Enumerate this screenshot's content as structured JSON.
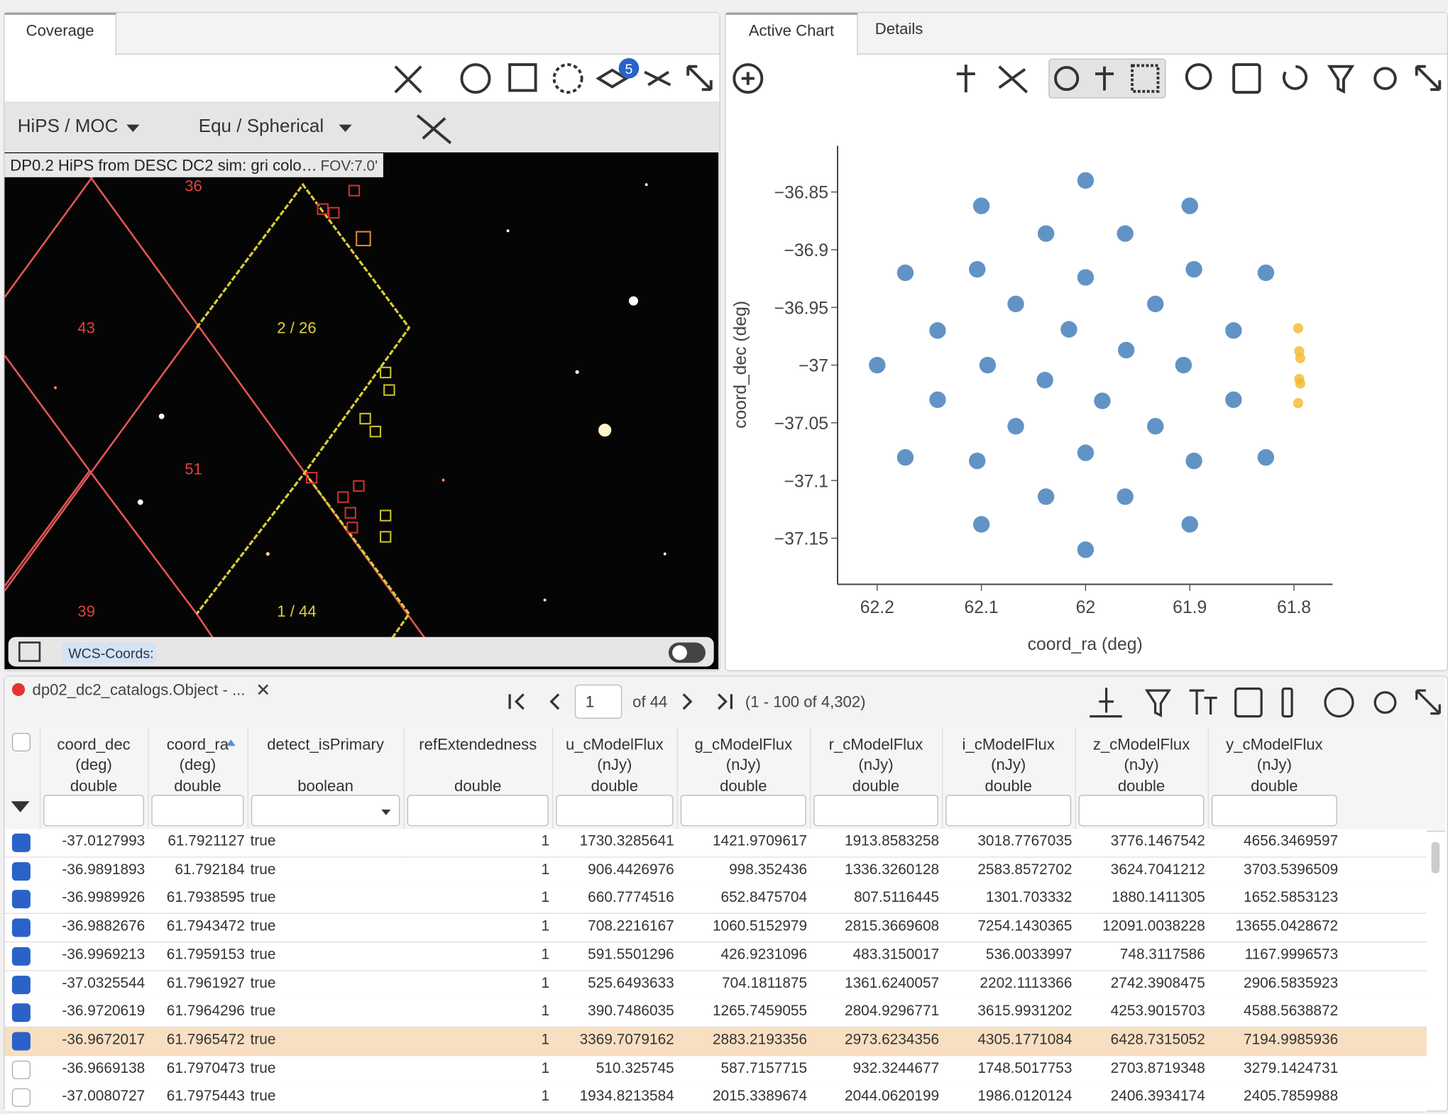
{
  "coverage": {
    "tab": "Coverage",
    "badge": "5",
    "projection": "HiPS / MOC",
    "coords": "Equ / Spherical",
    "image_title": "DP0.2 HiPS from DESC DC2 sim: gri colo…",
    "fov": "FOV:7.0'",
    "tile_labels": [
      "36",
      "43",
      "2 / 26",
      "51",
      "39",
      "1 / 44"
    ],
    "wcs": "WCS-Coords:"
  },
  "chart_panel": {
    "tabs": [
      "Active Chart",
      "Details"
    ]
  },
  "chart_data": {
    "type": "scatter",
    "xlabel": "coord_ra (deg)",
    "ylabel": "coord_dec (deg)",
    "xlim": [
      62.238,
      61.763
    ],
    "ylim": [
      -37.19,
      -36.81
    ],
    "xticks": [
      62.2,
      62.1,
      62,
      61.9,
      61.8
    ],
    "yticks": [
      {
        "value": -36.85,
        "label": "−36.85"
      },
      {
        "value": -36.9,
        "label": "−36.9"
      },
      {
        "value": -36.95,
        "label": "−36.95"
      },
      {
        "value": -37,
        "label": "−37"
      },
      {
        "value": -37.05,
        "label": "−37.05"
      },
      {
        "value": -37.1,
        "label": "−37.1"
      },
      {
        "value": -37.15,
        "label": "−37.15"
      }
    ],
    "series": [
      {
        "color": "#3b78b8",
        "x": [
          61.827,
          61.9,
          62.0,
          62.1,
          62.173,
          62.2,
          62.173,
          62.1,
          62.0,
          61.9,
          61.827,
          61.858,
          61.896,
          61.962,
          62.038,
          62.104,
          62.142,
          62.142,
          62.104,
          62.038,
          61.962,
          61.896,
          61.858,
          61.906,
          61.933,
          62.0,
          62.067,
          62.094,
          62.067,
          62.0,
          61.933,
          61.961,
          62.016,
          62.039,
          61.984
        ],
        "y": [
          -36.92,
          -36.862,
          -36.84,
          -36.862,
          -36.92,
          -37.0,
          -37.08,
          -37.138,
          -37.16,
          -37.138,
          -37.08,
          -36.97,
          -36.917,
          -36.886,
          -36.886,
          -36.917,
          -36.97,
          -37.03,
          -37.083,
          -37.114,
          -37.114,
          -37.083,
          -37.03,
          -37.0,
          -36.947,
          -36.924,
          -36.947,
          -37.0,
          -37.053,
          -37.076,
          -37.053,
          -36.987,
          -36.969,
          -37.013,
          -37.031
        ]
      },
      {
        "color": "#f5b82e",
        "x": [
          61.796,
          61.795,
          61.794,
          61.795,
          61.794,
          61.796
        ],
        "y": [
          -36.968,
          -36.988,
          -36.994,
          -37.012,
          -37.016,
          -37.033
        ]
      }
    ]
  },
  "table": {
    "title": "dp02_dc2_catalogs.Object - ...",
    "page": "1",
    "page_count": "of 44",
    "range": "(1 - 100 of 4,302)",
    "columns": [
      {
        "name": "coord_dec",
        "unit": "(deg)",
        "type": "double"
      },
      {
        "name": "coord_ra",
        "unit": "(deg)",
        "type": "double"
      },
      {
        "name": "detect_isPrimary",
        "type": "boolean"
      },
      {
        "name": "refExtendedness",
        "type": "double"
      },
      {
        "name": "u_cModelFlux",
        "unit": "(nJy)",
        "type": "double"
      },
      {
        "name": "g_cModelFlux",
        "unit": "(nJy)",
        "type": "double"
      },
      {
        "name": "r_cModelFlux",
        "unit": "(nJy)",
        "type": "double"
      },
      {
        "name": "i_cModelFlux",
        "unit": "(nJy)",
        "type": "double"
      },
      {
        "name": "z_cModelFlux",
        "unit": "(nJy)",
        "type": "double"
      },
      {
        "name": "y_cModelFlux",
        "unit": "(nJy)",
        "type": "double"
      }
    ],
    "rows": [
      [
        "-37.0127993",
        "61.7921127",
        "true",
        "1",
        "1730.3285641",
        "1421.9709617",
        "1913.8583258",
        "3018.7767035",
        "3776.1467542",
        "4656.3469597"
      ],
      [
        "-36.9891893",
        "61.792184",
        "true",
        "1",
        "906.4426976",
        "998.352436",
        "1336.3260128",
        "2583.8572702",
        "3624.7041212",
        "3703.5396509"
      ],
      [
        "-36.9989926",
        "61.7938595",
        "true",
        "1",
        "660.7774516",
        "652.8475704",
        "807.5116445",
        "1301.703332",
        "1880.1411305",
        "1652.5853123"
      ],
      [
        "-36.9882676",
        "61.7943472",
        "true",
        "1",
        "708.2216167",
        "1060.5152979",
        "2815.3669608",
        "7254.1430365",
        "12091.0038228",
        "13655.0428672"
      ],
      [
        "-36.9969213",
        "61.7959153",
        "true",
        "1",
        "591.5501296",
        "426.9231096",
        "483.3150017",
        "536.0033997",
        "748.3117586",
        "1167.9996573"
      ],
      [
        "-37.0325544",
        "61.7961927",
        "true",
        "1",
        "525.6493633",
        "704.1811875",
        "1361.6240057",
        "2202.1113366",
        "2742.3908475",
        "2906.5835923"
      ],
      [
        "-36.9720619",
        "61.7964296",
        "true",
        "1",
        "390.7486035",
        "1265.7459055",
        "2804.9296771",
        "3615.9931202",
        "4253.9015703",
        "4588.5638872"
      ],
      [
        "-36.9672017",
        "61.7965472",
        "true",
        "1",
        "3369.7079162",
        "2883.2193356",
        "2973.6234356",
        "4305.1771084",
        "6428.7315052",
        "7194.9985936"
      ],
      [
        "-36.9669138",
        "61.7970473",
        "true",
        "1",
        "510.325745",
        "587.7157715",
        "932.3244677",
        "1748.5017753",
        "2703.8719348",
        "3279.1424731"
      ],
      [
        "-37.0080727",
        "61.7975443",
        "true",
        "1",
        "1934.8213584",
        "2015.3389674",
        "2044.0620199",
        "1986.0120124",
        "2406.3934174",
        "2405.7859988"
      ]
    ],
    "checked": [
      true,
      true,
      true,
      true,
      true,
      true,
      true,
      true,
      false,
      false
    ],
    "selected_row": 7
  }
}
